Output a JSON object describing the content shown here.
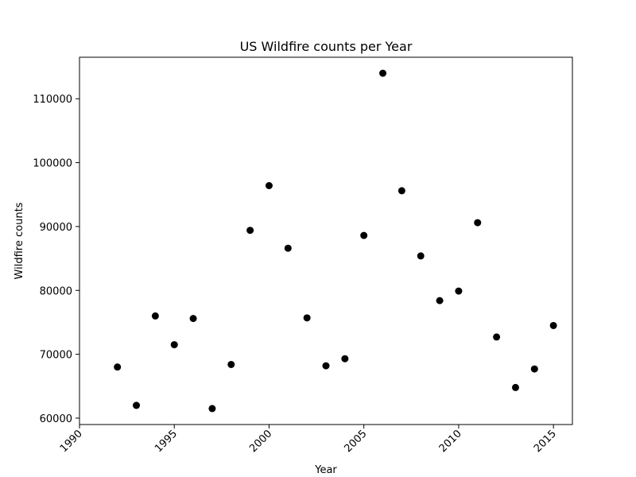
{
  "chart_data": {
    "type": "scatter",
    "title": "US Wildfire counts per Year",
    "xlabel": "Year",
    "ylabel": "Wildfire counts",
    "xlim": [
      1990,
      2016
    ],
    "ylim": [
      59000,
      116500
    ],
    "xticks": [
      1990,
      1995,
      2000,
      2005,
      2010,
      2015
    ],
    "yticks": [
      60000,
      70000,
      80000,
      90000,
      100000,
      110000
    ],
    "grid": false,
    "marker_color": "#000000",
    "series": [
      {
        "x": [
          1992,
          1993,
          1994,
          1995,
          1996,
          1997,
          1998,
          1999,
          2000,
          2001,
          2002,
          2003,
          2004,
          2005,
          2006,
          2007,
          2008,
          2009,
          2010,
          2011,
          2012,
          2013,
          2014,
          2015
        ],
        "y": [
          68000,
          62000,
          76000,
          71500,
          75600,
          61500,
          68400,
          89400,
          96400,
          86600,
          75700,
          68200,
          69300,
          88600,
          114000,
          95600,
          85400,
          78400,
          79900,
          90600,
          72700,
          64800,
          67700,
          74500
        ]
      }
    ]
  }
}
